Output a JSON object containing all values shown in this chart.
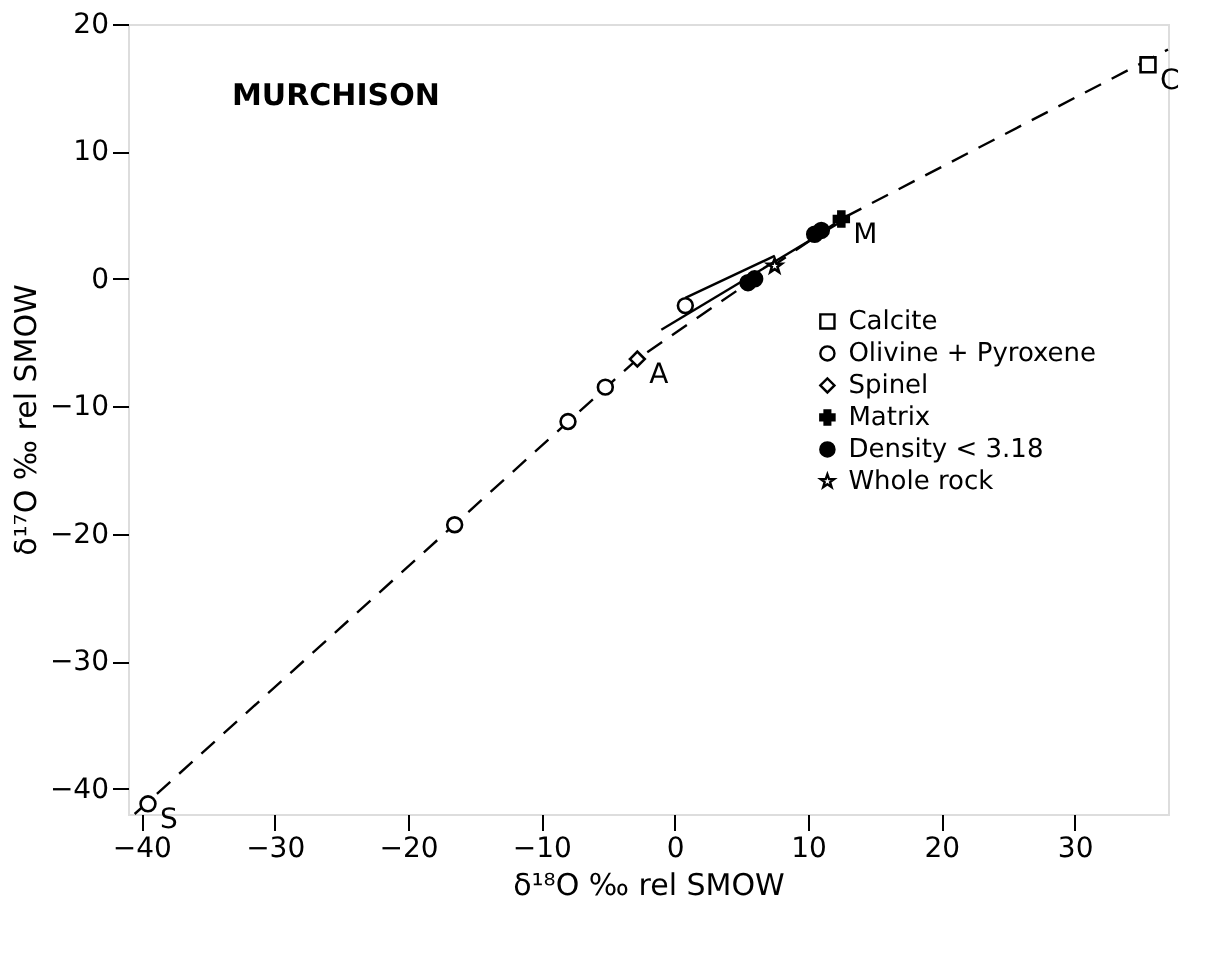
{
  "chart_data": {
    "type": "scatter",
    "xlabel": "δ¹⁸O ‰ rel SMOW",
    "ylabel": "δ¹⁷O ‰ rel SMOW",
    "xlim": [
      -41,
      37
    ],
    "ylim": [
      -42,
      20
    ],
    "xticks": [
      -40,
      -30,
      -20,
      -10,
      0,
      10,
      20,
      30
    ],
    "yticks": [
      -40,
      -30,
      -20,
      -10,
      0,
      10,
      20
    ],
    "grid": false,
    "legend": "right",
    "annotations": [
      "MURCHISON",
      {
        "text": "A",
        "x": -2.8,
        "y": -6.3
      },
      {
        "text": "M",
        "x": 12.5,
        "y": 4.7
      },
      {
        "text": "C",
        "x": 35.5,
        "y": 16.8
      },
      {
        "text": "S",
        "x": -39.5,
        "y": -41.2
      }
    ],
    "series": [
      {
        "type": "line",
        "color": "#000000",
        "line_style": "dashed",
        "marker": "none",
        "x": [
          -40.5,
          -2.8,
          12.5,
          37
        ],
        "values": [
          -42,
          -6.3,
          4.7,
          18
        ]
      },
      {
        "type": "line",
        "color": "#000000",
        "line_style": "solid",
        "marker": "none",
        "x": [
          -1,
          12.5
        ],
        "values": [
          -4,
          4.5
        ]
      },
      {
        "type": "line",
        "color": "#000000",
        "line_style": "solid",
        "marker": "none",
        "x": [
          0.8,
          7.5
        ],
        "values": [
          -1.5,
          1.8
        ]
      },
      {
        "name": "Calcite",
        "color": "#000000",
        "marker": "square",
        "x": [
          35.5
        ],
        "values": [
          16.8
        ]
      },
      {
        "name": "Olivine + Pyroxene",
        "color": "#000000",
        "marker": "circle",
        "x": [
          -39.5,
          -16.5,
          -8,
          -5.2,
          0.8
        ],
        "values": [
          -41.2,
          -19.3,
          -11.2,
          -8.5,
          -2.1
        ]
      },
      {
        "name": "Spinel",
        "color": "#000000",
        "marker": "diamond",
        "x": [
          -2.8
        ],
        "values": [
          -6.3
        ]
      },
      {
        "name": "Matrix",
        "color": "#000000",
        "marker": "cross",
        "x": [
          12.5
        ],
        "values": [
          4.7
        ]
      },
      {
        "name": "Density < 3.18",
        "color": "#000000",
        "marker": "dot",
        "x": [
          5.5,
          6,
          10.5,
          11
        ],
        "values": [
          -0.3,
          0,
          3.5,
          3.8
        ]
      },
      {
        "name": "Whole rock",
        "color": "#000000",
        "marker": "star",
        "x": [
          7.5
        ],
        "values": [
          1
        ]
      }
    ]
  }
}
